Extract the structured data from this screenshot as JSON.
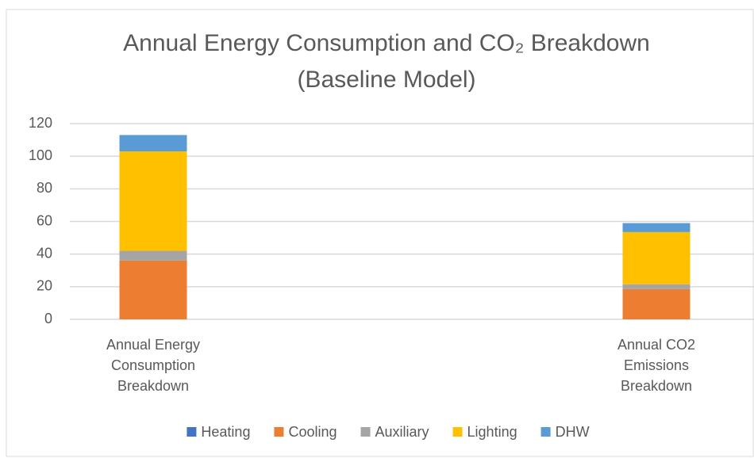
{
  "chart_data": {
    "type": "stacked_bar",
    "title": [
      "Annual Energy Consumption and CO₂ Breakdown",
      "(Baseline Model)"
    ],
    "categories": [
      "Annual Energy Consumption Breakdown",
      "Annual CO2 Emissions Breakdown"
    ],
    "series": [
      {
        "name": "Heating",
        "color": "#4472c4",
        "values": [
          0,
          0
        ]
      },
      {
        "name": "Cooling",
        "color": "#ed7d31",
        "values": [
          36,
          18.5
        ]
      },
      {
        "name": "Auxiliary",
        "color": "#a5a5a5",
        "values": [
          6,
          3
        ]
      },
      {
        "name": "Lighting",
        "color": "#ffc000",
        "values": [
          61,
          32
        ]
      },
      {
        "name": "DHW",
        "color": "#5b9bd5",
        "values": [
          10,
          5.5
        ]
      }
    ],
    "ylim": [
      0,
      120
    ],
    "yticks": [
      0,
      20,
      40,
      60,
      80,
      100,
      120
    ],
    "grid": true,
    "legend": "bottom"
  }
}
